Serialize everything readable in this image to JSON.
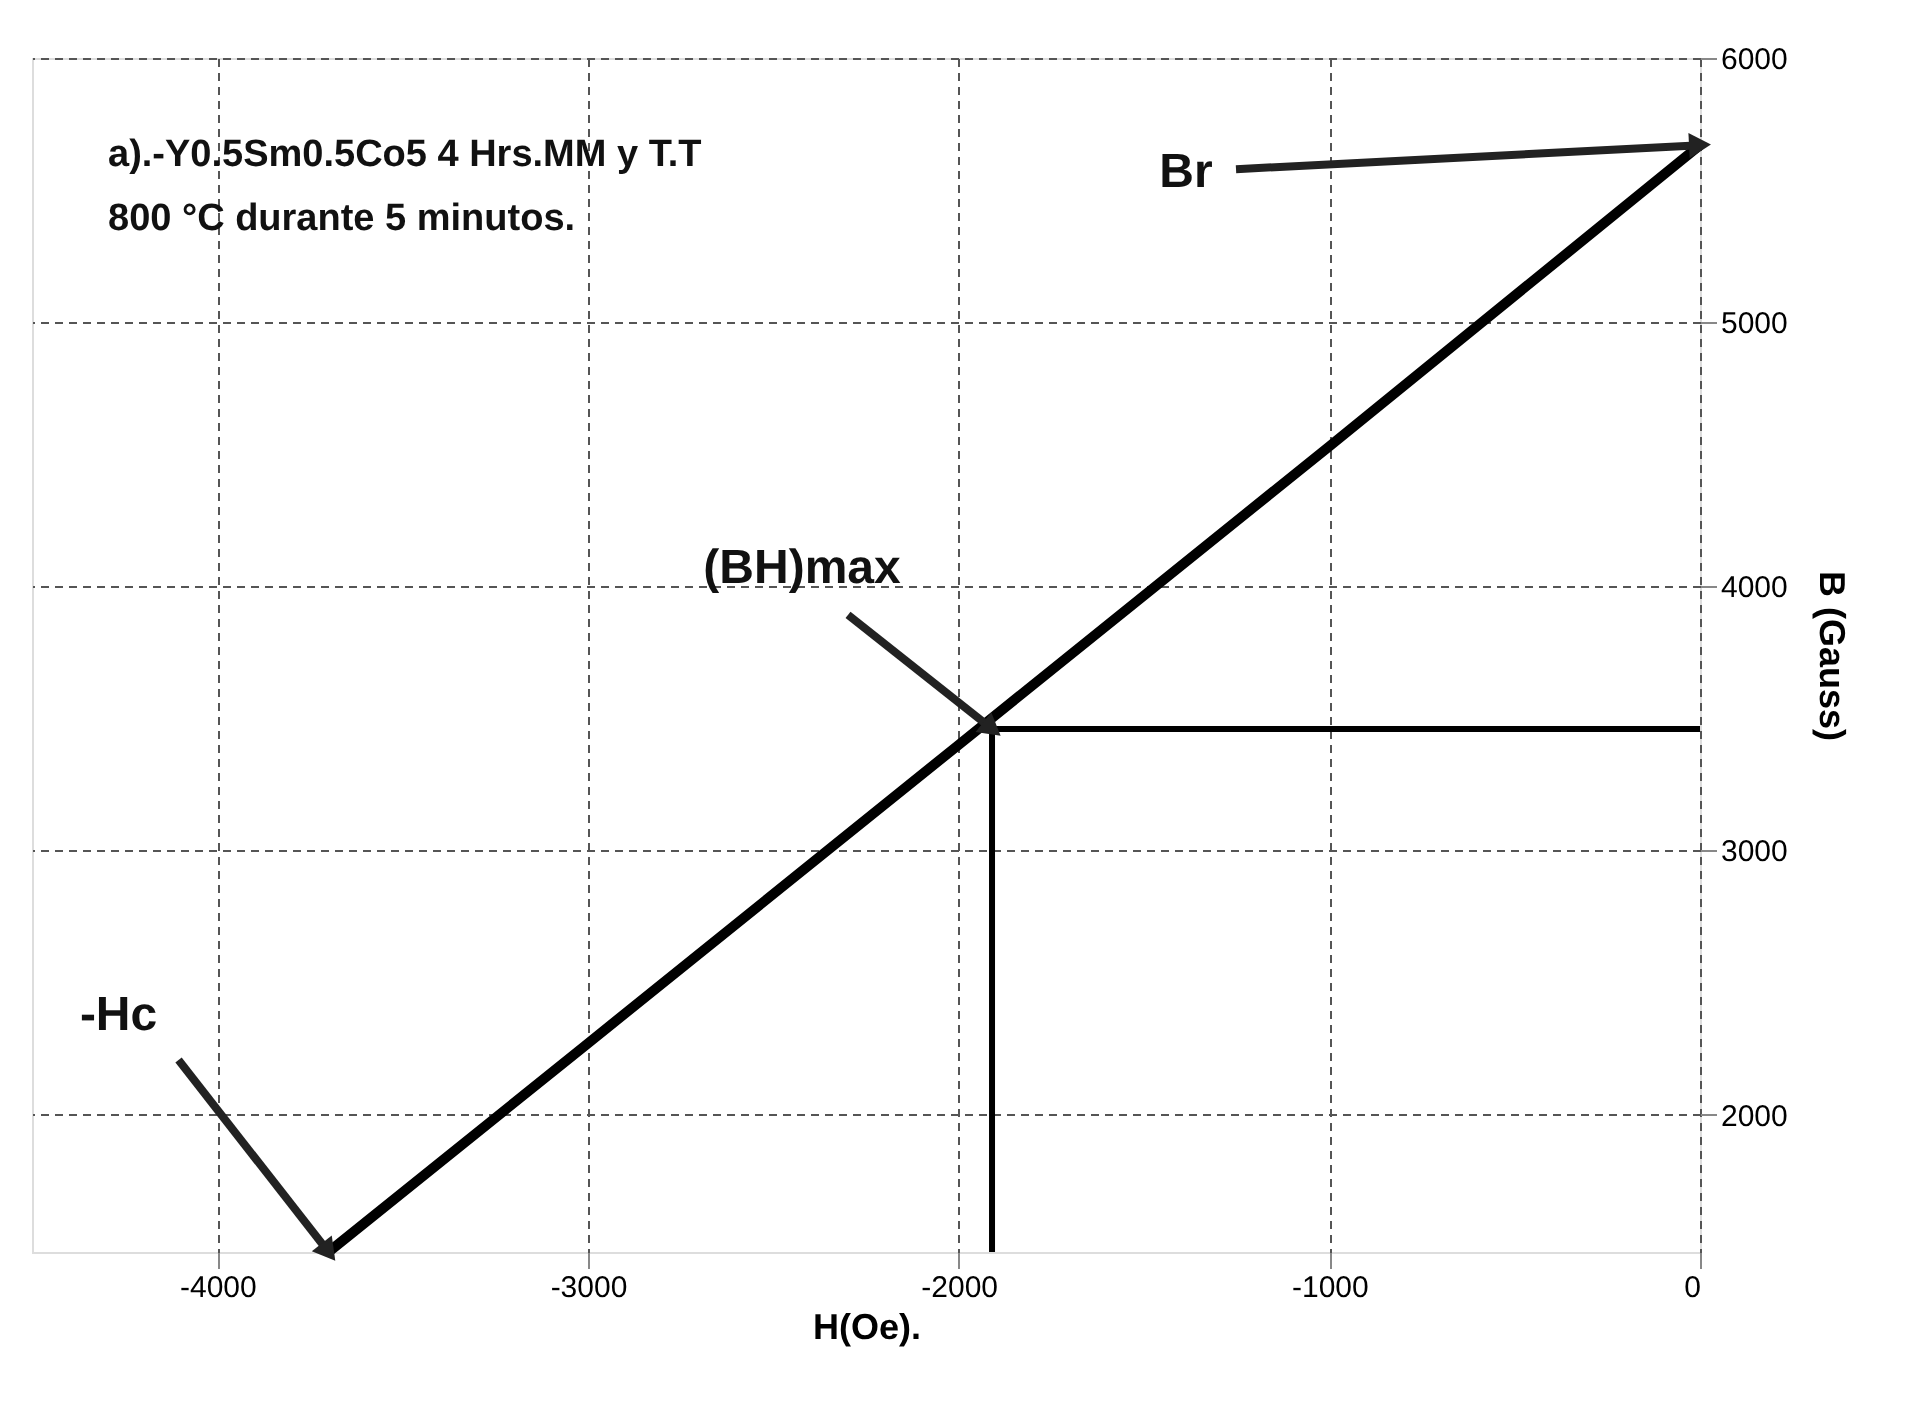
{
  "chart_data": {
    "type": "line",
    "xlabel": "H(Oe).",
    "ylabel": "B (Gauss)",
    "xlim": [
      -4500,
      0
    ],
    "ylim": [
      1480,
      6000
    ],
    "xticks": [
      -4000,
      -3000,
      -2000,
      -1000,
      0
    ],
    "yticks": [
      2000,
      3000,
      4000,
      5000,
      6000
    ],
    "grid": true,
    "marker": "none",
    "line_style": "solid",
    "series": [
      {
        "color": "#000000",
        "x": [
          -3700,
          -3000,
          -2000,
          -1000,
          0
        ],
        "values": [
          1480,
          2270,
          3400,
          4530,
          5670
        ]
      },
      {
        "color": "#000000",
        "x": [
          -1910,
          -1910,
          0
        ],
        "values": [
          1480,
          3460,
          3460
        ]
      }
    ],
    "annotations": [
      "a).-Y0.5Sm0.5Co5 4 Hrs.MM y T.T",
      "800 °C durante 5 minutos.",
      {
        "text": "-Hc",
        "x": -3700,
        "y": 1480
      },
      {
        "text": "(BH)max",
        "x": -1910,
        "y": 3460
      },
      {
        "text": "Br",
        "x": 0,
        "y": 5670
      }
    ]
  }
}
